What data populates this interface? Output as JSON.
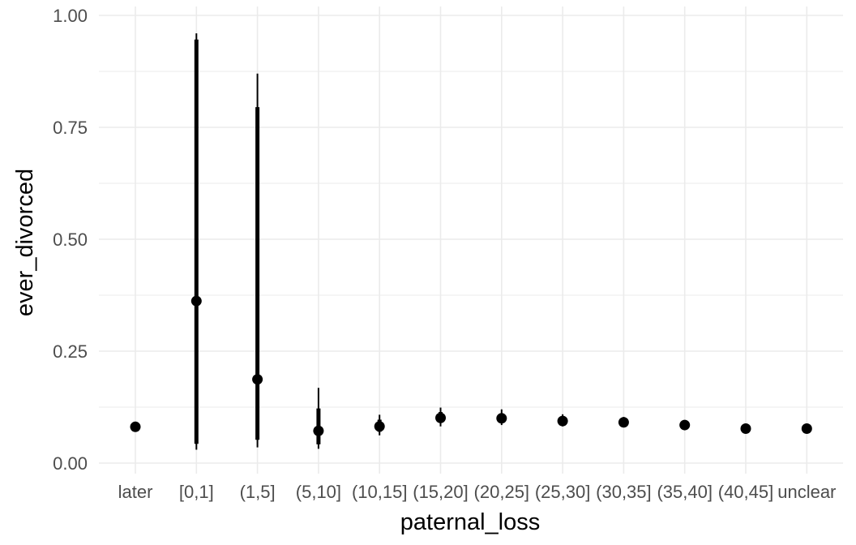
{
  "chart_data": {
    "type": "scatter",
    "subtype": "pointrange",
    "xlabel": "paternal_loss",
    "ylabel": "ever_divorced",
    "categories": [
      "later",
      "[0,1]",
      "(1,5]",
      "(5,10]",
      "(10,15]",
      "(15,20]",
      "(20,25]",
      "(25,30]",
      "(30,35]",
      "(35,40]",
      "(40,45]",
      "unclear"
    ],
    "points": [
      {
        "category": "later",
        "y": 0.081,
        "inner": [
          0.08,
          0.083
        ],
        "outer": [
          0.079,
          0.084
        ]
      },
      {
        "category": "[0,1]",
        "y": 0.362,
        "inner": [
          0.043,
          0.946
        ],
        "outer": [
          0.03,
          0.96
        ]
      },
      {
        "category": "(1,5]",
        "y": 0.187,
        "inner": [
          0.052,
          0.795
        ],
        "outer": [
          0.035,
          0.87
        ]
      },
      {
        "category": "(5,10]",
        "y": 0.072,
        "inner": [
          0.042,
          0.122
        ],
        "outer": [
          0.032,
          0.168
        ]
      },
      {
        "category": "(10,15]",
        "y": 0.082,
        "inner": [
          0.07,
          0.097
        ],
        "outer": [
          0.062,
          0.108
        ]
      },
      {
        "category": "(15,20]",
        "y": 0.101,
        "inner": [
          0.09,
          0.114
        ],
        "outer": [
          0.082,
          0.124
        ]
      },
      {
        "category": "(20,25]",
        "y": 0.1,
        "inner": [
          0.091,
          0.11
        ],
        "outer": [
          0.085,
          0.12
        ]
      },
      {
        "category": "(25,30]",
        "y": 0.094,
        "inner": [
          0.087,
          0.102
        ],
        "outer": [
          0.082,
          0.109
        ]
      },
      {
        "category": "(30,35]",
        "y": 0.091,
        "inner": [
          0.085,
          0.097
        ],
        "outer": [
          0.081,
          0.103
        ]
      },
      {
        "category": "(35,40]",
        "y": 0.085,
        "inner": [
          0.081,
          0.089
        ],
        "outer": [
          0.079,
          0.092
        ]
      },
      {
        "category": "(40,45]",
        "y": 0.077,
        "inner": [
          0.074,
          0.08
        ],
        "outer": [
          0.072,
          0.082
        ]
      },
      {
        "category": "unclear",
        "y": 0.077,
        "inner": [
          0.075,
          0.079
        ],
        "outer": [
          0.073,
          0.081
        ]
      }
    ],
    "y_ticks": [
      0.0,
      0.25,
      0.5,
      0.75,
      1.0
    ],
    "y_tick_labels": [
      "0.00",
      "0.25",
      "0.50",
      "0.75",
      "1.00"
    ],
    "ylim": [
      0,
      1
    ],
    "grid": true,
    "legend": "none",
    "colors": {
      "point": "#000000",
      "grid": "#ebebeb",
      "text": "#4d4d4d",
      "title": "#000000"
    }
  }
}
